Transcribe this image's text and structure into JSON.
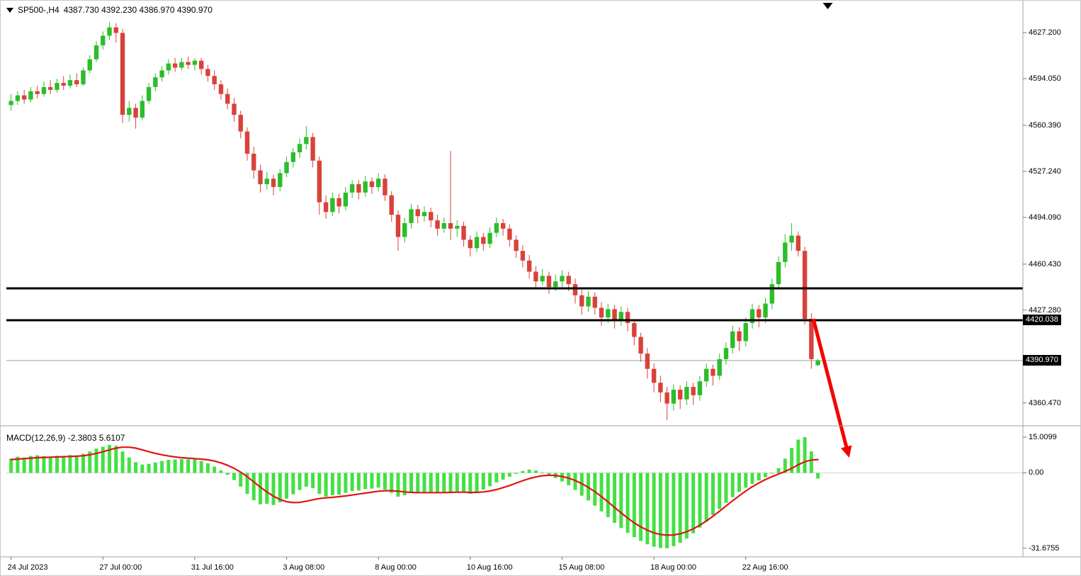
{
  "header": {
    "symbol": "SP500-,H4",
    "ohlc": "4387.730 4392.230 4386.970 4390.970"
  },
  "colors": {
    "bull": "#2bbd2b",
    "bear": "#d8423a",
    "wick_bull": "#2bbd2b",
    "wick_bear": "#d8423a",
    "macd_hist": "#44e044",
    "signal": "#e01414",
    "hline": "#000000",
    "current_price_line": "#9e9e9e",
    "arrow": "#f40000",
    "tag_bg": "#000000",
    "tag_fg": "#ffffff",
    "axis_line": "#a0a0a0"
  },
  "chart_data": [
    {
      "type": "candlestick",
      "title": "SP500-,H4",
      "y_range": [
        4345,
        4640
      ],
      "grid": false,
      "y_axis_ticks": [
        {
          "value": 4627.2,
          "label": "4627.200"
        },
        {
          "value": 4594.05,
          "label": "4594.050"
        },
        {
          "value": 4560.39,
          "label": "4560.390"
        },
        {
          "value": 4527.24,
          "label": "4527.240"
        },
        {
          "value": 4494.09,
          "label": "4494.090"
        },
        {
          "value": 4460.43,
          "label": "4460.430"
        },
        {
          "value": 4427.28,
          "label": "4427.280"
        },
        {
          "value": 4360.47,
          "label": "4360.470"
        }
      ],
      "x_axis_labels": [
        {
          "index": 0,
          "label": "24 Jul 2023"
        },
        {
          "index": 14,
          "label": "27 Jul 00:00"
        },
        {
          "index": 28,
          "label": "31 Jul 16:00"
        },
        {
          "index": 42,
          "label": "3 Aug 08:00"
        },
        {
          "index": 56,
          "label": "8 Aug 00:00"
        },
        {
          "index": 70,
          "label": "10 Aug 16:00"
        },
        {
          "index": 84,
          "label": "15 Aug 08:00"
        },
        {
          "index": 98,
          "label": "18 Aug 00:00"
        },
        {
          "index": 112,
          "label": "22 Aug 16:00"
        }
      ],
      "hlines": [
        {
          "price": 4443.0,
          "width": 3
        },
        {
          "price": 4420.038,
          "width": 3
        }
      ],
      "current_price": 4390.97,
      "price_tags": [
        {
          "value": 4420.038,
          "label": "4420.038"
        },
        {
          "value": 4390.97,
          "label": "4390.970"
        }
      ],
      "arrow": {
        "from_bar": 122.3,
        "from_price": 4421,
        "to_bar": 127.6,
        "to_price": 4324,
        "width": 5
      },
      "shift_marker_bar": 124.5,
      "candles": [
        [
          4575,
          4583,
          4571,
          4578
        ],
        [
          4578,
          4585,
          4575,
          4582
        ],
        [
          4582,
          4586,
          4576,
          4579
        ],
        [
          4579,
          4588,
          4577,
          4585
        ],
        [
          4585,
          4589,
          4580,
          4583
        ],
        [
          4583,
          4592,
          4581,
          4588
        ],
        [
          4588,
          4593,
          4583,
          4586
        ],
        [
          4586,
          4594,
          4584,
          4591
        ],
        [
          4591,
          4596,
          4586,
          4589
        ],
        [
          4589,
          4597,
          4587,
          4593
        ],
        [
          4593,
          4598,
          4588,
          4590
        ],
        [
          4590,
          4602,
          4589,
          4600
        ],
        [
          4600,
          4611,
          4598,
          4608
        ],
        [
          4608,
          4621,
          4606,
          4618
        ],
        [
          4618,
          4628,
          4615,
          4625
        ],
        [
          4625,
          4635,
          4622,
          4631
        ],
        [
          4631,
          4634,
          4620,
          4627
        ],
        [
          4627,
          4630,
          4562,
          4568
        ],
        [
          4568,
          4578,
          4563,
          4573
        ],
        [
          4573,
          4576,
          4558,
          4566
        ],
        [
          4566,
          4582,
          4564,
          4578
        ],
        [
          4578,
          4591,
          4576,
          4588
        ],
        [
          4588,
          4598,
          4585,
          4595
        ],
        [
          4595,
          4603,
          4592,
          4600
        ],
        [
          4600,
          4608,
          4597,
          4605
        ],
        [
          4605,
          4609,
          4599,
          4602
        ],
        [
          4602,
          4609,
          4600,
          4606
        ],
        [
          4606,
          4610,
          4601,
          4604
        ],
        [
          4604,
          4609,
          4600,
          4607
        ],
        [
          4607,
          4609,
          4597,
          4601
        ],
        [
          4601,
          4604,
          4592,
          4596
        ],
        [
          4596,
          4600,
          4586,
          4590
        ],
        [
          4590,
          4593,
          4579,
          4583
        ],
        [
          4583,
          4587,
          4572,
          4576
        ],
        [
          4576,
          4580,
          4563,
          4568
        ],
        [
          4568,
          4571,
          4551,
          4556
        ],
        [
          4556,
          4559,
          4535,
          4540
        ],
        [
          4540,
          4545,
          4522,
          4528
        ],
        [
          4528,
          4532,
          4512,
          4518
        ],
        [
          4518,
          4527,
          4514,
          4522
        ],
        [
          4522,
          4525,
          4510,
          4516
        ],
        [
          4516,
          4529,
          4513,
          4526
        ],
        [
          4526,
          4538,
          4523,
          4534
        ],
        [
          4534,
          4544,
          4530,
          4541
        ],
        [
          4541,
          4551,
          4537,
          4547
        ],
        [
          4547,
          4560,
          4543,
          4552
        ],
        [
          4552,
          4555,
          4530,
          4535
        ],
        [
          4535,
          4538,
          4496,
          4505
        ],
        [
          4505,
          4510,
          4493,
          4498
        ],
        [
          4498,
          4512,
          4495,
          4508
        ],
        [
          4508,
          4511,
          4497,
          4502
        ],
        [
          4502,
          4516,
          4499,
          4512
        ],
        [
          4512,
          4521,
          4508,
          4518
        ],
        [
          4518,
          4521,
          4507,
          4512
        ],
        [
          4512,
          4524,
          4509,
          4520
        ],
        [
          4520,
          4523,
          4511,
          4516
        ],
        [
          4516,
          4526,
          4513,
          4522
        ],
        [
          4522,
          4525,
          4506,
          4510
        ],
        [
          4510,
          4513,
          4491,
          4496
        ],
        [
          4496,
          4499,
          4470,
          4480
        ],
        [
          4480,
          4494,
          4476,
          4490
        ],
        [
          4490,
          4504,
          4486,
          4500
        ],
        [
          4500,
          4503,
          4490,
          4495
        ],
        [
          4495,
          4502,
          4491,
          4498
        ],
        [
          4498,
          4501,
          4487,
          4492
        ],
        [
          4492,
          4496,
          4481,
          4486
        ],
        [
          4486,
          4494,
          4483,
          4490
        ],
        [
          4490,
          4542,
          4478,
          4486
        ],
        [
          4486,
          4492,
          4480,
          4488
        ],
        [
          4488,
          4491,
          4473,
          4478
        ],
        [
          4478,
          4481,
          4466,
          4472
        ],
        [
          4472,
          4484,
          4469,
          4480
        ],
        [
          4480,
          4483,
          4470,
          4475
        ],
        [
          4475,
          4487,
          4472,
          4483
        ],
        [
          4483,
          4494,
          4480,
          4490
        ],
        [
          4490,
          4493,
          4481,
          4486
        ],
        [
          4486,
          4489,
          4473,
          4478
        ],
        [
          4478,
          4481,
          4465,
          4470
        ],
        [
          4470,
          4474,
          4458,
          4463
        ],
        [
          4463,
          4467,
          4450,
          4455
        ],
        [
          4455,
          4459,
          4443,
          4448
        ],
        [
          4448,
          4457,
          4445,
          4452
        ],
        [
          4452,
          4455,
          4439,
          4444
        ],
        [
          4444,
          4453,
          4441,
          4448
        ],
        [
          4448,
          4456,
          4444,
          4452
        ],
        [
          4452,
          4455,
          4441,
          4446
        ],
        [
          4446,
          4450,
          4432,
          4438
        ],
        [
          4438,
          4442,
          4424,
          4430
        ],
        [
          4430,
          4441,
          4426,
          4437
        ],
        [
          4437,
          4440,
          4424,
          4429
        ],
        [
          4429,
          4433,
          4416,
          4422
        ],
        [
          4422,
          4432,
          4418,
          4428
        ],
        [
          4428,
          4431,
          4414,
          4420
        ],
        [
          4420,
          4430,
          4416,
          4426
        ],
        [
          4426,
          4429,
          4412,
          4418
        ],
        [
          4418,
          4421,
          4402,
          4408
        ],
        [
          4408,
          4411,
          4390,
          4396
        ],
        [
          4396,
          4400,
          4378,
          4385
        ],
        [
          4385,
          4389,
          4368,
          4375
        ],
        [
          4375,
          4380,
          4361,
          4368
        ],
        [
          4368,
          4372,
          4348,
          4360
        ],
        [
          4360,
          4374,
          4355,
          4370
        ],
        [
          4370,
          4373,
          4356,
          4363
        ],
        [
          4363,
          4376,
          4359,
          4372
        ],
        [
          4372,
          4375,
          4359,
          4366
        ],
        [
          4366,
          4380,
          4362,
          4376
        ],
        [
          4376,
          4389,
          4372,
          4385
        ],
        [
          4385,
          4388,
          4373,
          4380
        ],
        [
          4380,
          4396,
          4377,
          4392
        ],
        [
          4392,
          4404,
          4388,
          4400
        ],
        [
          4400,
          4416,
          4396,
          4412
        ],
        [
          4412,
          4415,
          4398,
          4405
        ],
        [
          4405,
          4422,
          4401,
          4418
        ],
        [
          4418,
          4432,
          4414,
          4428
        ],
        [
          4428,
          4431,
          4415,
          4422
        ],
        [
          4422,
          4436,
          4418,
          4432
        ],
        [
          4432,
          4450,
          4428,
          4446
        ],
        [
          4446,
          4466,
          4442,
          4462
        ],
        [
          4462,
          4482,
          4458,
          4476
        ],
        [
          4476,
          4490,
          4470,
          4481
        ],
        [
          4481,
          4484,
          4466,
          4470
        ],
        [
          4470,
          4473,
          4417,
          4421
        ],
        [
          4421,
          4425,
          4385,
          4392
        ],
        [
          4387.7,
          4392.2,
          4387.0,
          4391.0
        ]
      ]
    },
    {
      "type": "macd",
      "label": "MACD(12,26,9) -2.3803 5.6107",
      "y_range": [
        -35,
        18
      ],
      "y_axis_ticks": [
        {
          "value": 15.0099,
          "label": "15.0099"
        },
        {
          "value": 0,
          "label": "0.00"
        },
        {
          "value": -31.6755,
          "label": "-31.6755"
        }
      ],
      "histogram": [
        6.0,
        6.8,
        6.4,
        7.1,
        7.4,
        7.0,
        6.6,
        7.2,
        7.0,
        7.5,
        7.2,
        8.0,
        9.0,
        10.2,
        11.0,
        11.8,
        11.4,
        9.0,
        6.5,
        4.5,
        3.5,
        3.8,
        4.4,
        5.0,
        5.5,
        5.6,
        5.8,
        5.7,
        5.8,
        5.0,
        4.0,
        2.6,
        1.0,
        -0.8,
        -3.0,
        -5.8,
        -8.8,
        -11.5,
        -13.2,
        -13.0,
        -13.5,
        -12.4,
        -10.8,
        -9.0,
        -7.2,
        -5.8,
        -6.4,
        -8.8,
        -10.0,
        -9.4,
        -9.2,
        -8.4,
        -7.6,
        -7.4,
        -6.8,
        -6.6,
        -6.2,
        -7.0,
        -8.4,
        -10.0,
        -9.4,
        -8.4,
        -8.4,
        -8.0,
        -8.2,
        -8.6,
        -8.2,
        -8.0,
        -7.8,
        -8.2,
        -8.8,
        -8.0,
        -7.0,
        -5.6,
        -4.0,
        -2.8,
        -1.6,
        -0.4,
        0.8,
        1.4,
        1.0,
        0.2,
        -0.8,
        -2.2,
        -3.6,
        -5.2,
        -7.2,
        -9.6,
        -11.6,
        -13.8,
        -16.2,
        -18.6,
        -21.0,
        -23.2,
        -25.2,
        -27.0,
        -28.6,
        -30.0,
        -31.0,
        -31.6,
        -31.6755,
        -30.8,
        -29.4,
        -27.6,
        -25.4,
        -23.0,
        -20.4,
        -17.8,
        -15.2,
        -12.6,
        -10.2,
        -8.0,
        -6.2,
        -4.6,
        -3.2,
        -1.8,
        -0.2,
        2.0,
        6.0,
        10.5,
        14.0,
        15.0099,
        9.0,
        -2.3803
      ],
      "signal": [
        5.6,
        5.8,
        6.0,
        6.2,
        6.4,
        6.5,
        6.6,
        6.7,
        6.8,
        6.9,
        7.0,
        7.2,
        7.6,
        8.2,
        8.9,
        9.7,
        10.4,
        10.8,
        10.8,
        10.4,
        9.7,
        8.9,
        8.2,
        7.6,
        7.1,
        6.7,
        6.4,
        6.2,
        6.0,
        5.8,
        5.5,
        5.0,
        4.2,
        3.2,
        1.9,
        0.3,
        -1.6,
        -3.8,
        -6.0,
        -8.0,
        -9.8,
        -11.2,
        -12.1,
        -12.5,
        -12.4,
        -11.9,
        -11.3,
        -10.8,
        -10.5,
        -10.3,
        -10.0,
        -9.7,
        -9.3,
        -8.9,
        -8.5,
        -8.1,
        -7.7,
        -7.5,
        -7.5,
        -7.7,
        -8.0,
        -8.2,
        -8.3,
        -8.3,
        -8.3,
        -8.3,
        -8.3,
        -8.2,
        -8.1,
        -8.1,
        -8.2,
        -8.2,
        -8.0,
        -7.6,
        -7.0,
        -6.2,
        -5.3,
        -4.3,
        -3.3,
        -2.4,
        -1.7,
        -1.2,
        -1.0,
        -1.1,
        -1.5,
        -2.2,
        -3.2,
        -4.5,
        -6.1,
        -7.9,
        -10.0,
        -12.2,
        -14.5,
        -16.8,
        -19.0,
        -21.0,
        -22.7,
        -24.1,
        -25.2,
        -25.9,
        -26.2,
        -26.1,
        -25.6,
        -24.7,
        -23.5,
        -22.0,
        -20.2,
        -18.2,
        -16.1,
        -13.9,
        -11.7,
        -9.6,
        -7.6,
        -5.8,
        -4.2,
        -2.8,
        -1.6,
        -0.5,
        0.6,
        1.9,
        3.4,
        4.7,
        5.4,
        5.6107
      ]
    }
  ]
}
